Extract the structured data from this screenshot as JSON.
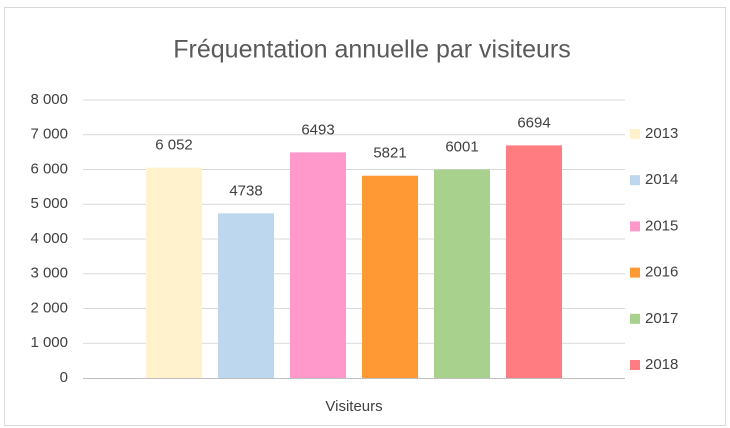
{
  "chart_data": {
    "type": "bar",
    "title": "Fréquentation annuelle par visiteurs",
    "categories": [
      "Visiteurs"
    ],
    "series": [
      {
        "name": "2013",
        "color": "#fff2cc",
        "values": [
          6052
        ],
        "value_labels": [
          "6 052"
        ]
      },
      {
        "name": "2014",
        "color": "#bdd7ee",
        "values": [
          4738
        ]
      },
      {
        "name": "2015",
        "color": "#ff99cc",
        "values": [
          6493
        ]
      },
      {
        "name": "2016",
        "color": "#ff9933",
        "values": [
          5821
        ]
      },
      {
        "name": "2017",
        "color": "#a9d18e",
        "values": [
          6001
        ]
      },
      {
        "name": "2018",
        "color": "#ff7c80",
        "values": [
          6694
        ]
      }
    ],
    "ylim": [
      0,
      8000
    ],
    "yticks": [
      0,
      {
        "value": 1000,
        "label": "1 000"
      },
      {
        "value": 2000,
        "label": "2 000"
      },
      {
        "value": 3000,
        "label": "3 000"
      },
      {
        "value": 4000,
        "label": "4 000"
      },
      {
        "value": 5000,
        "label": "5 000"
      },
      {
        "value": 6000,
        "label": "6 000"
      },
      {
        "value": 7000,
        "label": "7 000"
      },
      {
        "value": 8000,
        "label": "8 000"
      }
    ],
    "grid": true,
    "legend": "right"
  }
}
